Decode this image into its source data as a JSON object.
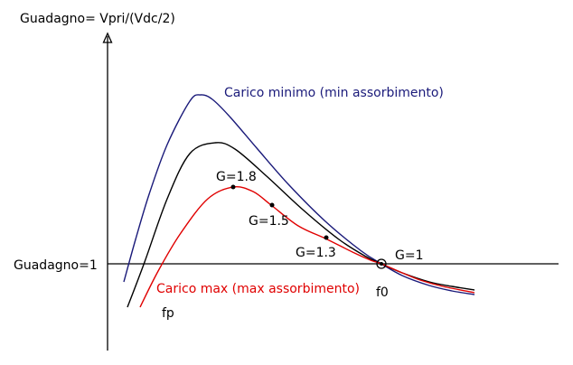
{
  "chart_data": {
    "type": "line",
    "ylabel": "Guadagno= Vpri/(Vdc/2)",
    "reference_line_label": "Guadagno=1",
    "series": [
      {
        "name": "Carico minimo (min assorbimento)",
        "color": "#1a1a7a",
        "points": [
          [
            137,
            312
          ],
          [
            150,
            265
          ],
          [
            165,
            215
          ],
          [
            185,
            160
          ],
          [
            210,
            112
          ],
          [
            222,
            105
          ],
          [
            235,
            110
          ],
          [
            255,
            130
          ],
          [
            285,
            165
          ],
          [
            320,
            205
          ],
          [
            360,
            245
          ],
          [
            400,
            278
          ],
          [
            422,
            292
          ],
          [
            445,
            305
          ],
          [
            475,
            316
          ],
          [
            500,
            322
          ],
          [
            525,
            326
          ]
        ]
      },
      {
        "name": "",
        "color": "#000000",
        "points": [
          [
            141,
            340
          ],
          [
            160,
            290
          ],
          [
            185,
            220
          ],
          [
            210,
            170
          ],
          [
            238,
            158
          ],
          [
            260,
            165
          ],
          [
            295,
            195
          ],
          [
            335,
            232
          ],
          [
            375,
            265
          ],
          [
            405,
            284
          ],
          [
            422,
            292
          ],
          [
            445,
            302
          ],
          [
            475,
            312
          ],
          [
            500,
            317
          ],
          [
            525,
            321
          ]
        ]
      },
      {
        "name": "Carico max (max assorbimento)",
        "color": "#e00000",
        "points": [
          [
            155,
            340
          ],
          [
            175,
            300
          ],
          [
            200,
            258
          ],
          [
            230,
            220
          ],
          [
            258,
            207
          ],
          [
            280,
            212
          ],
          [
            300,
            227
          ],
          [
            330,
            250
          ],
          [
            360,
            264
          ],
          [
            390,
            279
          ],
          [
            410,
            288
          ],
          [
            422,
            292
          ],
          [
            445,
            302
          ],
          [
            465,
            310
          ],
          [
            490,
            317
          ],
          [
            525,
            324
          ]
        ]
      }
    ],
    "gain_points": [
      {
        "label": "G=1.8",
        "x": 258,
        "y": 207
      },
      {
        "label": "G=1.5",
        "x": 301,
        "y": 227
      },
      {
        "label": "G=1.3",
        "x": 361,
        "y": 263
      }
    ],
    "resonance": {
      "label": "G=1",
      "x": 422,
      "y": 292
    },
    "x_annotations": {
      "fp": "fp",
      "f0": "f0"
    }
  }
}
